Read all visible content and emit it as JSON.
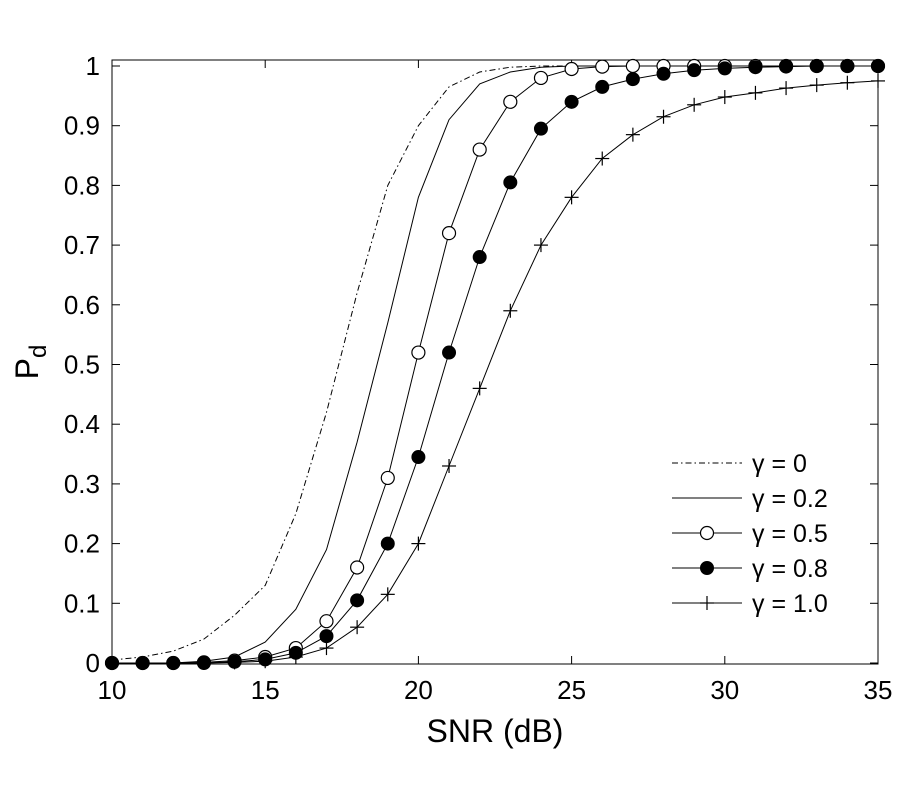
{
  "chart_data": {
    "type": "line",
    "title": "",
    "xlabel": "SNR (dB)",
    "ylabel_main": "P",
    "ylabel_sub": "d",
    "xlim": [
      10,
      35
    ],
    "ylim": [
      0,
      1
    ],
    "xticks": [
      10,
      15,
      20,
      25,
      30,
      35
    ],
    "yticks": [
      0,
      0.1,
      0.2,
      0.3,
      0.4,
      0.5,
      0.6,
      0.7,
      0.8,
      0.9,
      1
    ],
    "grid": false,
    "legend_position": "bottom-right",
    "x": [
      10,
      11,
      12,
      13,
      14,
      15,
      16,
      17,
      18,
      19,
      20,
      21,
      22,
      23,
      24,
      25,
      26,
      27,
      28,
      29,
      30,
      31,
      32,
      33,
      34,
      35
    ],
    "series": [
      {
        "name": "γ = 0",
        "line_style": "dashdot",
        "marker": "none",
        "values": [
          0.005,
          0.01,
          0.02,
          0.04,
          0.08,
          0.13,
          0.25,
          0.42,
          0.62,
          0.8,
          0.9,
          0.965,
          0.99,
          0.998,
          1.0,
          1.0,
          1.0,
          1.0,
          1.0,
          1.0,
          1.0,
          1.0,
          1.0,
          1.0,
          1.0,
          1.0
        ]
      },
      {
        "name": "γ = 0.2",
        "line_style": "solid",
        "marker": "none",
        "values": [
          0.0,
          0.0,
          0.0,
          0.003,
          0.01,
          0.035,
          0.09,
          0.19,
          0.37,
          0.57,
          0.78,
          0.91,
          0.97,
          0.99,
          0.998,
          1.0,
          1.0,
          1.0,
          1.0,
          1.0,
          1.0,
          1.0,
          1.0,
          1.0,
          1.0,
          1.0
        ]
      },
      {
        "name": "γ = 0.5",
        "line_style": "solid",
        "marker": "open-circle",
        "values": [
          0.0,
          0.0,
          0.0,
          0.001,
          0.004,
          0.01,
          0.025,
          0.07,
          0.16,
          0.31,
          0.52,
          0.72,
          0.86,
          0.94,
          0.98,
          0.995,
          0.999,
          1.0,
          1.0,
          1.0,
          1.0,
          1.0,
          1.0,
          1.0,
          1.0,
          1.0
        ]
      },
      {
        "name": "γ = 0.8",
        "line_style": "solid",
        "marker": "filled-circle",
        "values": [
          0.0,
          0.0,
          0.0,
          0.0,
          0.002,
          0.006,
          0.017,
          0.045,
          0.105,
          0.2,
          0.345,
          0.52,
          0.68,
          0.805,
          0.895,
          0.94,
          0.965,
          0.978,
          0.987,
          0.993,
          0.996,
          0.998,
          0.999,
          1.0,
          1.0,
          1.0
        ]
      },
      {
        "name": "γ = 1.0",
        "line_style": "solid",
        "marker": "plus",
        "values": [
          0.0,
          0.0,
          0.0,
          0.0,
          0.001,
          0.003,
          0.01,
          0.025,
          0.06,
          0.115,
          0.2,
          0.33,
          0.46,
          0.59,
          0.7,
          0.78,
          0.845,
          0.885,
          0.915,
          0.935,
          0.948,
          0.955,
          0.963,
          0.968,
          0.972,
          0.975
        ]
      }
    ]
  }
}
